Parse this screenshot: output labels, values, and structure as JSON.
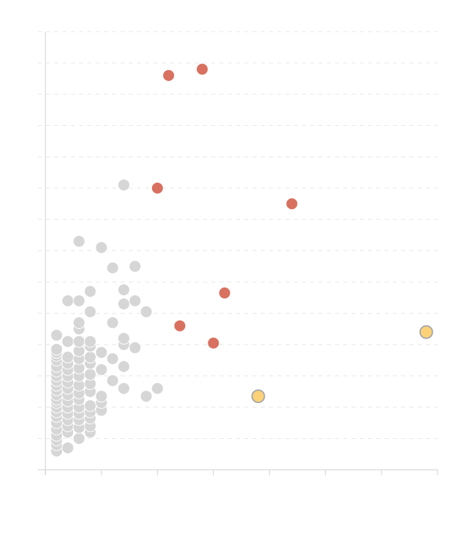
{
  "chart_data": {
    "type": "scatter",
    "title": "",
    "xlabel": "",
    "ylabel": "",
    "xlim": [
      0,
      35
    ],
    "ylim": [
      0,
      14
    ],
    "x_ticks": [
      0,
      5,
      10,
      15,
      20,
      25,
      30,
      35
    ],
    "y_gridlines": [
      1,
      2,
      3,
      4,
      5,
      6,
      7,
      8,
      9,
      10,
      11,
      12,
      13,
      14
    ],
    "colors": {
      "default": "#d6d6d6",
      "red": "#d97160",
      "yellow": "#fcd278"
    },
    "series": [
      {
        "color": "default",
        "points": [
          [
            1,
            0.6
          ],
          [
            1,
            0.8
          ],
          [
            1,
            0.95
          ],
          [
            1,
            1.1
          ],
          [
            1,
            1.3
          ],
          [
            1,
            1.5
          ],
          [
            1,
            1.7
          ],
          [
            1,
            1.85
          ],
          [
            1,
            2
          ],
          [
            1,
            2.15
          ],
          [
            1,
            2.25
          ],
          [
            1,
            2.4
          ],
          [
            1,
            2.55
          ],
          [
            1,
            2.7
          ],
          [
            1,
            2.85
          ],
          [
            1,
            3
          ],
          [
            1,
            3.15
          ],
          [
            1,
            3.3
          ],
          [
            1,
            3.5
          ],
          [
            1,
            3.65
          ],
          [
            1,
            3.75
          ],
          [
            1,
            3.85
          ],
          [
            1,
            4.3
          ],
          [
            2,
            0.7
          ],
          [
            2,
            1.2
          ],
          [
            2,
            1.4
          ],
          [
            2,
            1.6
          ],
          [
            2,
            1.8
          ],
          [
            2,
            2
          ],
          [
            2,
            2.2
          ],
          [
            2,
            2.4
          ],
          [
            2,
            2.6
          ],
          [
            2,
            2.8
          ],
          [
            2,
            3
          ],
          [
            2,
            3.2
          ],
          [
            2,
            3.4
          ],
          [
            2,
            3.6
          ],
          [
            2,
            4.1
          ],
          [
            2,
            5.4
          ],
          [
            3,
            1
          ],
          [
            3,
            1.35
          ],
          [
            3,
            1.6
          ],
          [
            3,
            1.8
          ],
          [
            3,
            2
          ],
          [
            3,
            2.25
          ],
          [
            3,
            2.45
          ],
          [
            3,
            2.7
          ],
          [
            3,
            3
          ],
          [
            3,
            3.25
          ],
          [
            3,
            3.55
          ],
          [
            3,
            3.8
          ],
          [
            3,
            4.1
          ],
          [
            3,
            4.5
          ],
          [
            3,
            4.7
          ],
          [
            3,
            5.4
          ],
          [
            3,
            7.3
          ],
          [
            4,
            1.2
          ],
          [
            4,
            1.4
          ],
          [
            4,
            1.65
          ],
          [
            4,
            1.85
          ],
          [
            4,
            2.05
          ],
          [
            4,
            2.5
          ],
          [
            4,
            2.75
          ],
          [
            4,
            3.05
          ],
          [
            4,
            3.4
          ],
          [
            4,
            3.6
          ],
          [
            4,
            3.95
          ],
          [
            4,
            4.1
          ],
          [
            4,
            5.05
          ],
          [
            4,
            5.7
          ],
          [
            5,
            1.9
          ],
          [
            5,
            2.15
          ],
          [
            5,
            2.35
          ],
          [
            5,
            3.2
          ],
          [
            5,
            3.75
          ],
          [
            5,
            7.1
          ],
          [
            6,
            2.85
          ],
          [
            6,
            3.55
          ],
          [
            6,
            4.7
          ],
          [
            6,
            6.45
          ],
          [
            7,
            2.6
          ],
          [
            7,
            3.3
          ],
          [
            7,
            4
          ],
          [
            7,
            4.2
          ],
          [
            7,
            5.3
          ],
          [
            7,
            5.75
          ],
          [
            7,
            9.1
          ],
          [
            8,
            3.9
          ],
          [
            8,
            5.4
          ],
          [
            8,
            6.5
          ],
          [
            9,
            2.35
          ],
          [
            9,
            5.05
          ],
          [
            10,
            2.6
          ]
        ]
      },
      {
        "color": "red",
        "points": [
          [
            11,
            12.6
          ],
          [
            14,
            12.8
          ],
          [
            10,
            9.0
          ],
          [
            22,
            8.5
          ],
          [
            16,
            5.65
          ],
          [
            12,
            4.6
          ],
          [
            15,
            4.05
          ]
        ]
      },
      {
        "color": "yellow",
        "points": [
          [
            19,
            2.35
          ],
          [
            34,
            4.4
          ]
        ]
      }
    ]
  }
}
